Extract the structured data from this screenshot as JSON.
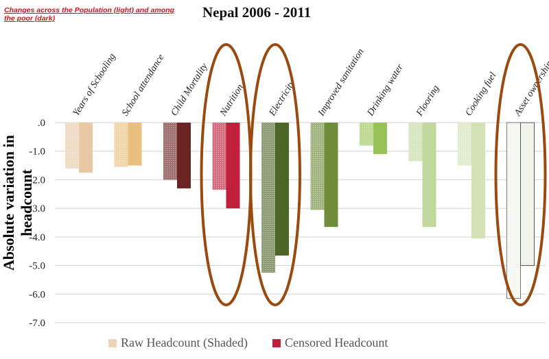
{
  "note": "Changes across the Population (light) and among the poor (dark)",
  "chart_data": {
    "type": "bar",
    "title": "Nepal 2006 - 2011",
    "xlabel": "",
    "ylabel": "Absolute variation in headcount",
    "ylim": [
      -7.0,
      0.0
    ],
    "yticks": [
      ".0",
      "-1.0",
      "-2.0",
      "-3.0",
      "-4.0",
      "-5.0",
      "-6.0",
      "-7.0"
    ],
    "categories": [
      "Years of Schooling",
      "School attendance",
      "Child Mortality",
      "Nutrition",
      "Electricity",
      "Improved sanitation",
      "Drinking water",
      "Flooring",
      "Cooking fuel",
      "Asset ownership"
    ],
    "series": [
      {
        "name": "Raw Headcount (Shaded)",
        "values": [
          -1.6,
          -1.55,
          -2.0,
          -2.35,
          -5.25,
          -3.05,
          -0.8,
          -1.35,
          -1.5,
          -6.15
        ]
      },
      {
        "name": "Censored Headcount",
        "values": [
          -1.75,
          -1.5,
          -2.3,
          -3.0,
          -4.65,
          -3.65,
          -1.1,
          -3.65,
          -4.05,
          -5.0
        ]
      }
    ],
    "colors": [
      "#e8c9a4",
      "#e9c07e",
      "#6a2424",
      "#c21f3c",
      "#4d6628",
      "#6e8c3a",
      "#98c356",
      "#c2d89f",
      "#d1e2b4",
      "#f0f3ea"
    ],
    "legend_position": "bottom",
    "highlighted_categories": [
      "Nutrition",
      "Electricity",
      "Asset ownership"
    ],
    "highlight_color": "#9a4a0f",
    "grid": true
  }
}
